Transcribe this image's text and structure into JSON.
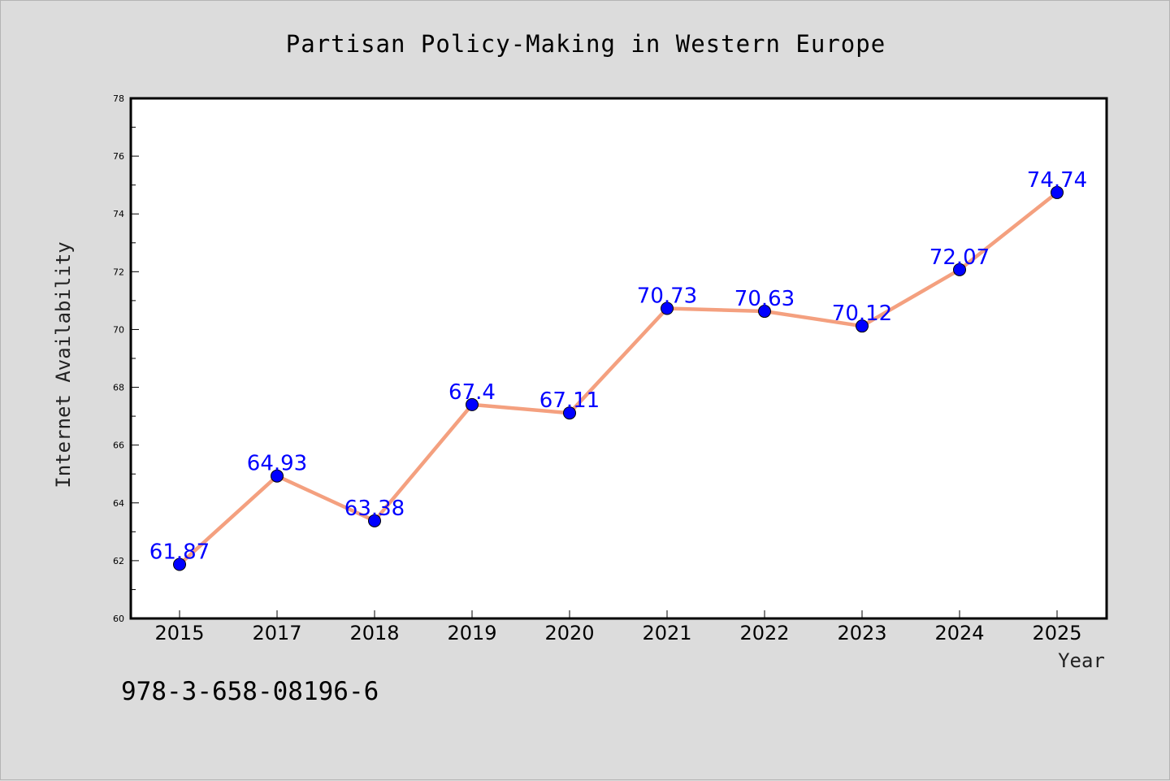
{
  "chart_data": {
    "type": "line",
    "title": "Partisan Policy-Making in Western Europe",
    "xlabel": "Year",
    "ylabel": "Internet Availability",
    "categories": [
      "2015",
      "2017",
      "2018",
      "2019",
      "2020",
      "2021",
      "2022",
      "2023",
      "2024",
      "2025"
    ],
    "values": [
      61.87,
      64.93,
      63.38,
      67.4,
      67.11,
      70.73,
      70.63,
      70.12,
      72.07,
      74.74
    ],
    "data_labels": [
      "61.87",
      "64.93",
      "63.38",
      "67.4",
      "67.11",
      "70.73",
      "70.63",
      "70.12",
      "72.07",
      "74.74"
    ],
    "ylim": [
      60,
      78
    ],
    "y_ticks": [
      "60",
      "62",
      "64",
      "66",
      "68",
      "70",
      "72",
      "74",
      "76",
      "78"
    ],
    "grid": false,
    "legend": "none",
    "line_color": "#f4a07f",
    "marker_color": "#0000ff",
    "label_color": "#0000ff"
  },
  "footer": {
    "isbn": "978-3-658-08196-6"
  }
}
